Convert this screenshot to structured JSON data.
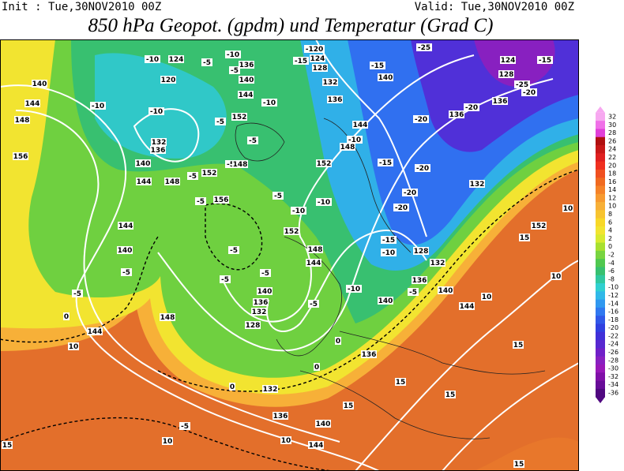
{
  "header": {
    "init": "Init : Tue,30NOV2010 00Z",
    "valid": "Valid: Tue,30NOV2010 00Z",
    "title": "850 hPa Geopot. (gpdm) und Temperatur (Grad C)"
  },
  "colorbar": {
    "levels": [
      32,
      30,
      28,
      26,
      24,
      22,
      20,
      18,
      16,
      14,
      12,
      10,
      8,
      6,
      4,
      2,
      0,
      -2,
      -4,
      -6,
      -8,
      -10,
      -12,
      -14,
      -16,
      -18,
      -20,
      -22,
      -24,
      -26,
      -28,
      -30,
      -32,
      -34,
      -36
    ],
    "colors": [
      "#f7a8f0",
      "#f070e8",
      "#e040d8",
      "#b01010",
      "#c81818",
      "#e02020",
      "#f03020",
      "#f05020",
      "#f06a20",
      "#f58228",
      "#f79a30",
      "#f7b038",
      "#f7c430",
      "#f8d828",
      "#f2e430",
      "#d8ea30",
      "#a8e030",
      "#78d440",
      "#50c850",
      "#38c070",
      "#30c8a0",
      "#30d0d0",
      "#30b8e8",
      "#3098f0",
      "#3078f0",
      "#3058e8",
      "#3040e0",
      "#4030d8",
      "#5828d0",
      "#7020c8",
      "#8820c0",
      "#9818b8",
      "#8010a8",
      "#680c98",
      "#500880"
    ]
  },
  "contour_labels": [
    "-10",
    "124",
    "-5",
    "-10",
    "136",
    "-15",
    "124",
    "-120",
    "-25",
    "-15",
    "124",
    "140",
    "120",
    "-5",
    "140",
    "128",
    "-15",
    "132",
    "140",
    "128",
    "-25",
    "-20",
    "144",
    "-10",
    "-10",
    "-5",
    "152",
    "-10",
    "144",
    "136",
    "136",
    "136",
    "-20",
    "148",
    "-20",
    "144",
    "132",
    "136",
    "-5",
    "148",
    "-10",
    "156",
    "140",
    "-5",
    "148",
    "152",
    "-15",
    "152",
    "-20",
    "144",
    "148",
    "-5",
    "132",
    "156",
    "-5",
    "-5",
    "-10",
    "-10",
    "-20",
    "-20",
    "144",
    "152",
    "-15",
    "148",
    "140",
    "-5",
    "144",
    "-10",
    "128",
    "132",
    "-5",
    "-5",
    "-5",
    "136",
    "140",
    "-5",
    "140",
    "-5",
    "-10",
    "140",
    "-5",
    "144",
    "136",
    "132",
    "0",
    "148",
    "128",
    "144",
    "10",
    "0",
    "136",
    "0",
    "0",
    "132",
    "15",
    "136",
    "15",
    "15",
    "-5",
    "140",
    "10",
    "10",
    "144",
    "15",
    "15",
    "15",
    "10",
    "10",
    "15",
    "152",
    "10"
  ]
}
